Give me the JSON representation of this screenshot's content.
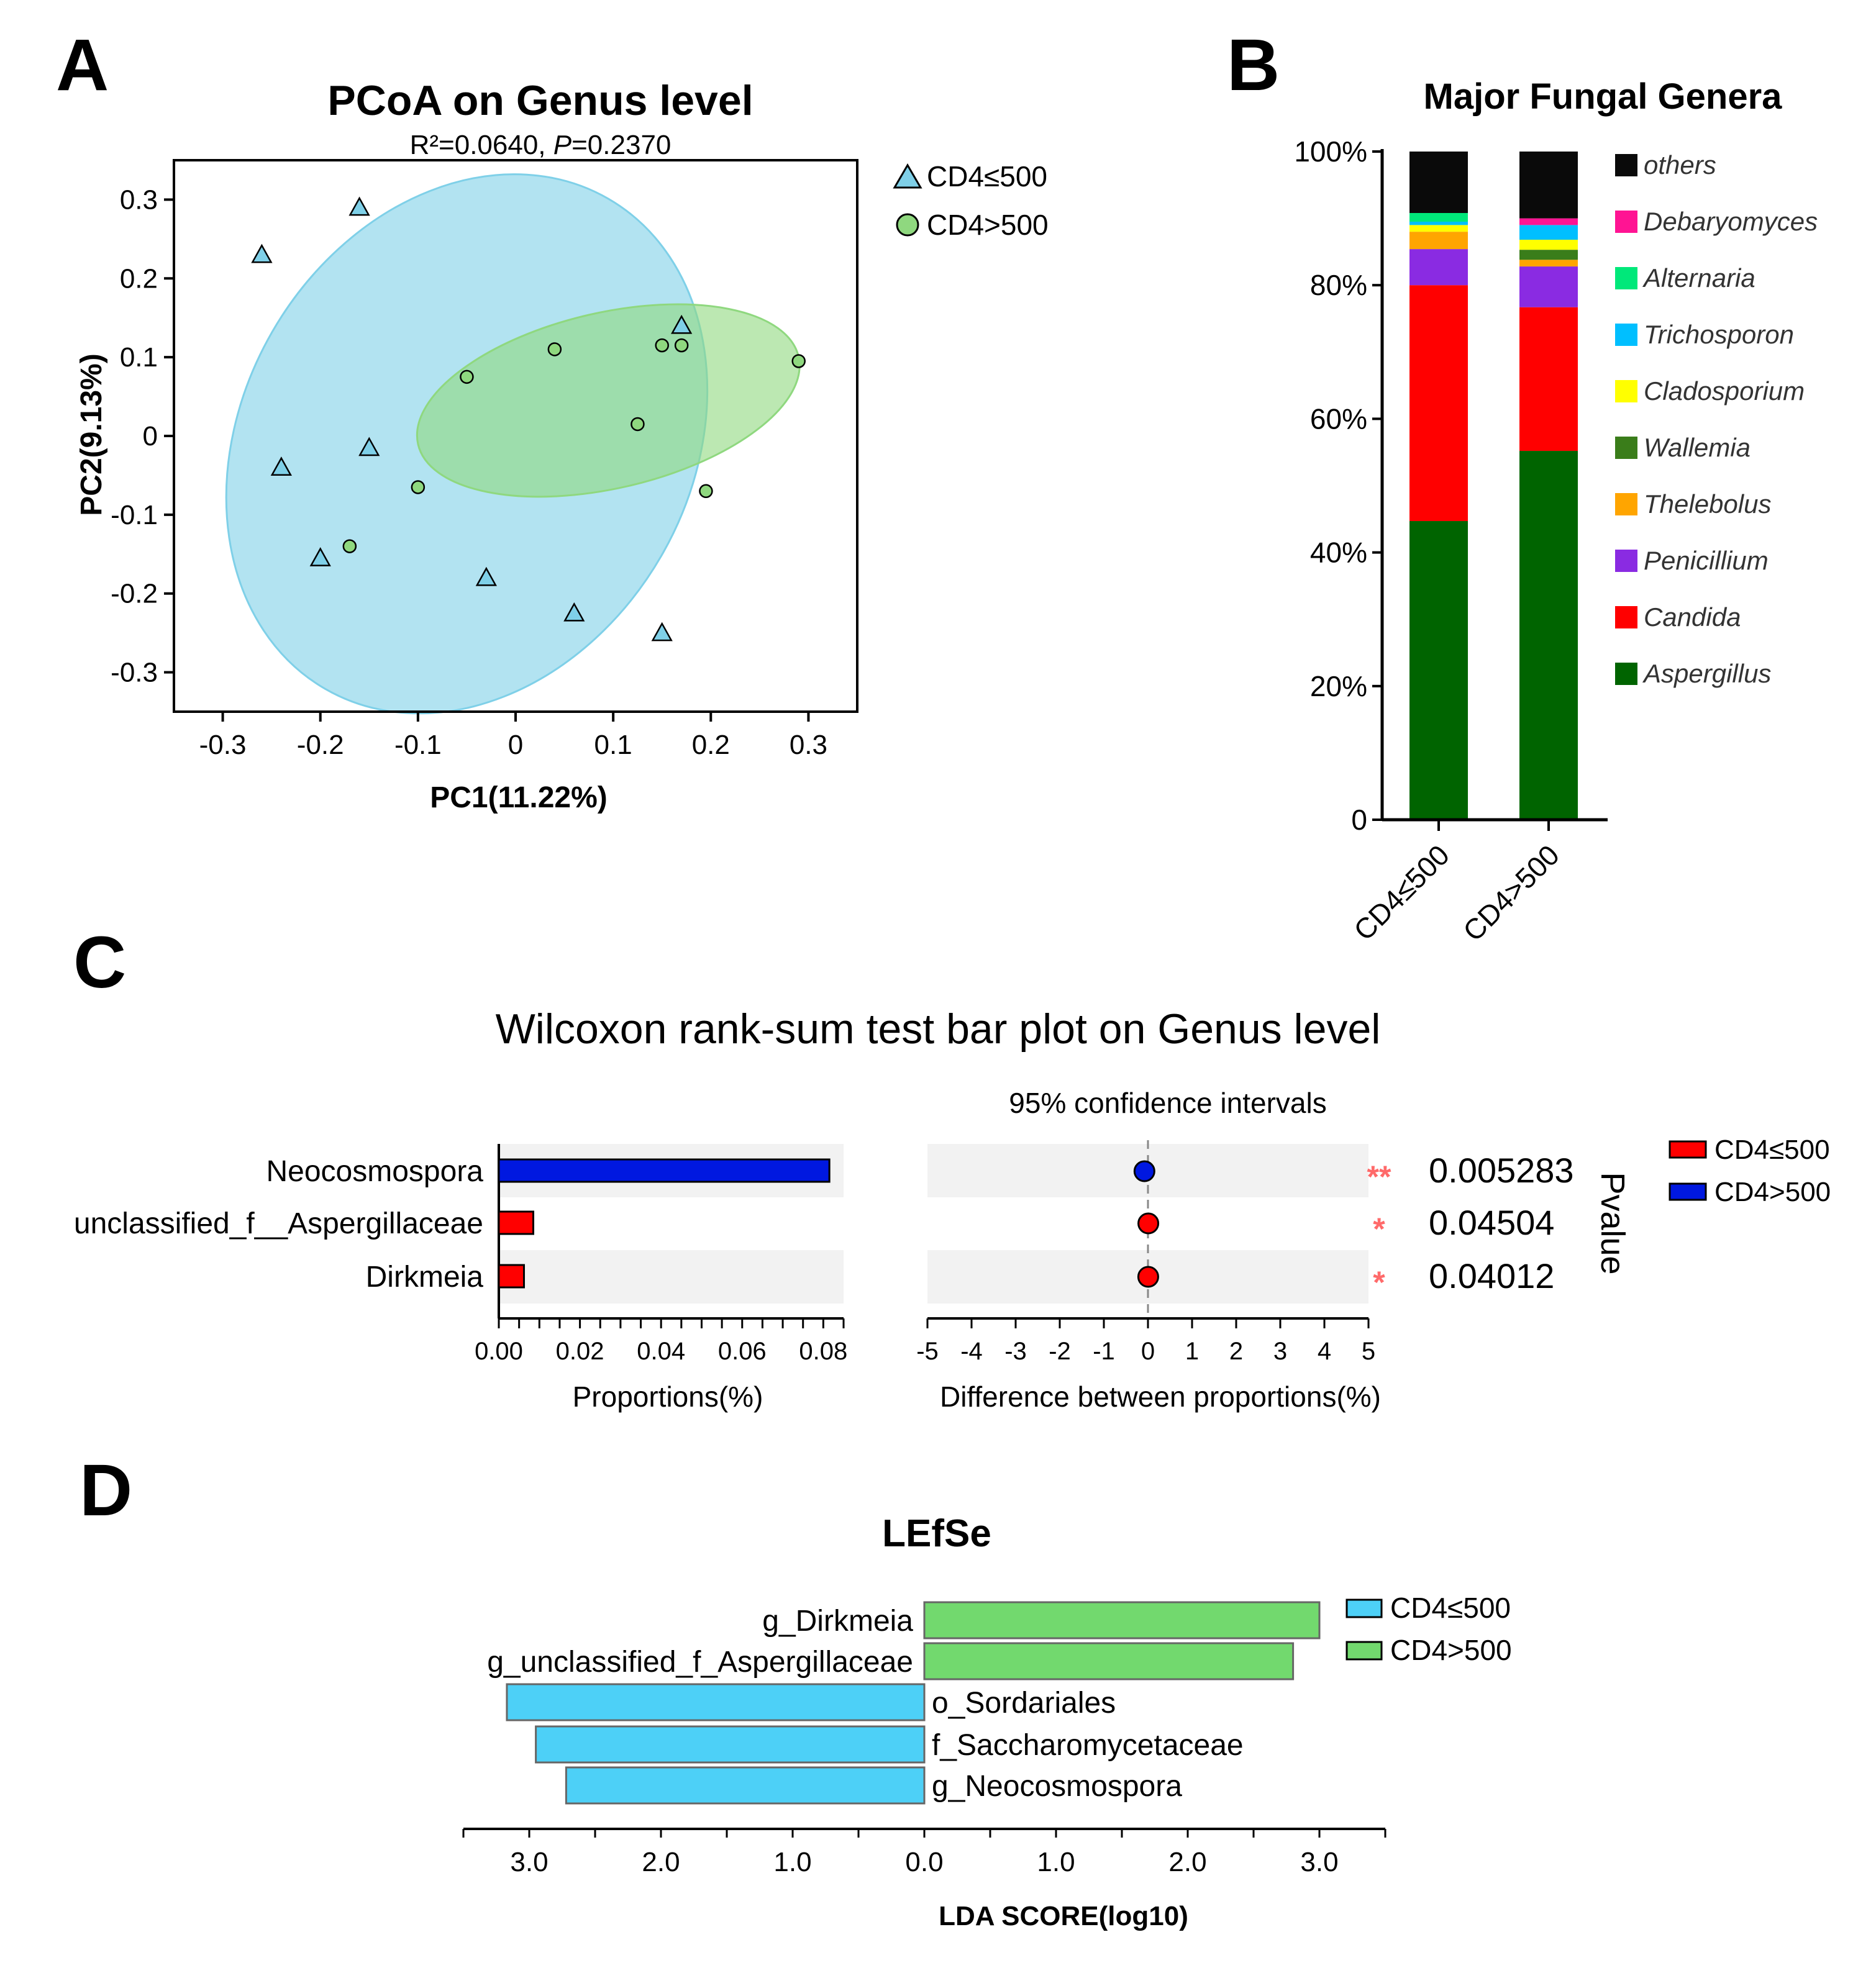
{
  "panels": {
    "A": {
      "label": "A",
      "title": "PCoA on Genus level",
      "stat_r2": "R²=0.0640, ",
      "stat_p_label": "P",
      "stat_p_value": "=0.2370",
      "xlabel": "PC1(11.22%)",
      "ylabel": "PC2(9.13%)",
      "xlim": [
        -0.35,
        0.35
      ],
      "ylim": [
        -0.35,
        0.35
      ],
      "xticks": [
        -0.3,
        -0.2,
        -0.1,
        0,
        0.1,
        0.2,
        0.3
      ],
      "xtick_labels": [
        "-0.3",
        "-0.2",
        "-0.1",
        "0",
        "0.1",
        "0.2",
        "0.3"
      ],
      "yticks": [
        0.3,
        0.2,
        0.1,
        0,
        -0.1,
        -0.2,
        -0.3
      ],
      "ytick_labels": [
        "0.3",
        "0.2",
        "0.1",
        "0",
        "-0.1",
        "-0.2",
        "-0.3"
      ],
      "legend": [
        {
          "name": "CD4≤500",
          "marker": "triangle",
          "color": "#7fd0e8"
        },
        {
          "name": "CD4>500",
          "marker": "circle",
          "color": "#8fd87f"
        }
      ]
    },
    "B": {
      "label": "B",
      "title": "Major Fungal Genera",
      "ytick_labels": [
        "0",
        "20%",
        "40%",
        "60%",
        "80%",
        "100%"
      ]
    },
    "C": {
      "label": "C",
      "title": "Wilcoxon rank-sum test bar plot on Genus level",
      "ci_title": "95% confidence intervals",
      "left_xlabel": "Proportions(%)",
      "right_xlabel": "Difference between proportions(%)",
      "pvalue_label": "Pvalue",
      "left_tick_labels": [
        "0.00",
        "0.02",
        "0.04",
        "0.06",
        "0.08"
      ],
      "right_tick_labels": [
        "-5",
        "-4",
        "-3",
        "-2",
        "-1",
        "0",
        "1",
        "2",
        "3",
        "4",
        "5"
      ],
      "legend": [
        {
          "name": "CD4≤500",
          "color": "#ff0000"
        },
        {
          "name": "CD4>500",
          "color": "#0018e0"
        }
      ]
    },
    "D": {
      "label": "D",
      "title": "LEfSe",
      "xlabel": "LDA SCORE(log10)",
      "tick_labels": [
        "3.0",
        "2.0",
        "1.0",
        "0.0",
        "1.0",
        "2.0",
        "3.0"
      ],
      "legend": [
        {
          "name": "CD4≤500",
          "color": "#4dd0f7"
        },
        {
          "name": "CD4>500",
          "color": "#72d96e"
        }
      ]
    }
  },
  "chart_data": [
    {
      "type": "scatter",
      "panel": "A",
      "series": [
        {
          "name": "CD4≤500",
          "color": "#7fd0e8",
          "x": [
            -0.16,
            -0.26,
            0.17,
            -0.15,
            -0.24,
            -0.2,
            -0.03,
            0.06,
            0.15
          ],
          "y": [
            0.29,
            0.23,
            0.14,
            -0.015,
            -0.04,
            -0.155,
            -0.18,
            -0.225,
            -0.25
          ]
        },
        {
          "name": "CD4>500",
          "color": "#8fd87f",
          "x": [
            0.04,
            0.15,
            0.17,
            0.29,
            -0.05,
            0.125,
            -0.1,
            0.195,
            -0.17
          ],
          "y": [
            0.11,
            0.115,
            0.115,
            0.095,
            0.075,
            0.015,
            -0.065,
            -0.07,
            -0.14
          ]
        }
      ],
      "ellipses": [
        {
          "group": "CD4≤500",
          "color": "#7fd0e8",
          "cx": -0.05,
          "cy": -0.01,
          "rx": 0.23,
          "ry": 0.29,
          "angle_deg": 30
        },
        {
          "group": "CD4>500",
          "color": "#8fd87f",
          "cx": 0.095,
          "cy": 0.045,
          "rx": 0.2,
          "ry": 0.09,
          "angle_deg": -13
        }
      ]
    },
    {
      "type": "bar",
      "panel": "B",
      "stacked": true,
      "categories": [
        "CD4≤500",
        "CD4>500"
      ],
      "ylim": [
        0,
        100
      ],
      "series": [
        {
          "name": "Aspergillus",
          "color": "#006400",
          "values": [
            44.7,
            55.2
          ]
        },
        {
          "name": "Candida",
          "color": "#ff0000",
          "values": [
            35.3,
            21.5
          ]
        },
        {
          "name": "Penicillium",
          "color": "#8a2be2",
          "values": [
            5.4,
            6.1
          ]
        },
        {
          "name": "Thelebolus",
          "color": "#ffa500",
          "values": [
            2.6,
            1.0
          ]
        },
        {
          "name": "Wallemia",
          "color": "#3a7d1a",
          "values": [
            0.0,
            1.5
          ]
        },
        {
          "name": "Cladosporium",
          "color": "#ffff00",
          "values": [
            1.0,
            1.5
          ]
        },
        {
          "name": "Trichosporon",
          "color": "#00bfff",
          "values": [
            0.5,
            2.2
          ]
        },
        {
          "name": "Alternaria",
          "color": "#00e87a",
          "values": [
            1.3,
            0.0
          ]
        },
        {
          "name": "Debaryomyces",
          "color": "#ff1493",
          "values": [
            0.0,
            1.0
          ]
        },
        {
          "name": "others",
          "color": "#0a0a0a",
          "values": [
            9.2,
            10.0
          ]
        }
      ],
      "legend_order": [
        "others",
        "Debaryomyces",
        "Alternaria",
        "Trichosporon",
        "Cladosporium",
        "Wallemia",
        "Thelebolus",
        "Penicillium",
        "Candida",
        "Aspergillus"
      ]
    },
    {
      "type": "bar",
      "panel": "C",
      "categories": [
        "Neocosmospora",
        "unclassified_f__Aspergillaceae",
        "Dirkmeia"
      ],
      "proportions": {
        "xlim": [
          0,
          0.085
        ],
        "CD4≤500": [
          0.0,
          0.0085,
          0.0062
        ],
        "CD4>500": [
          0.0815,
          0.0,
          0.0
        ]
      },
      "difference": {
        "xlim": [
          -5,
          5
        ],
        "values": [
          -0.08,
          0.008,
          0.006
        ],
        "point_colors": [
          "#0018e0",
          "#ff0000",
          "#ff0000"
        ]
      },
      "significance": [
        "**",
        "*",
        "*"
      ],
      "pvalues": [
        "0.005283",
        "0.04504",
        "0.04012"
      ]
    },
    {
      "type": "bar",
      "panel": "D",
      "orientation": "horizontal",
      "xlim": [
        -3.5,
        3.5
      ],
      "categories": [
        "g_Dirkmeia",
        "g_unclassified_f_Aspergillaceae",
        "o_Sordariales",
        "f_Saccharomycetaceae",
        "g_Neocosmospora"
      ],
      "values": [
        3.0,
        2.8,
        -3.17,
        -2.95,
        -2.72
      ],
      "groups": [
        "CD4>500",
        "CD4>500",
        "CD4≤500",
        "CD4≤500",
        "CD4≤500"
      ]
    }
  ]
}
